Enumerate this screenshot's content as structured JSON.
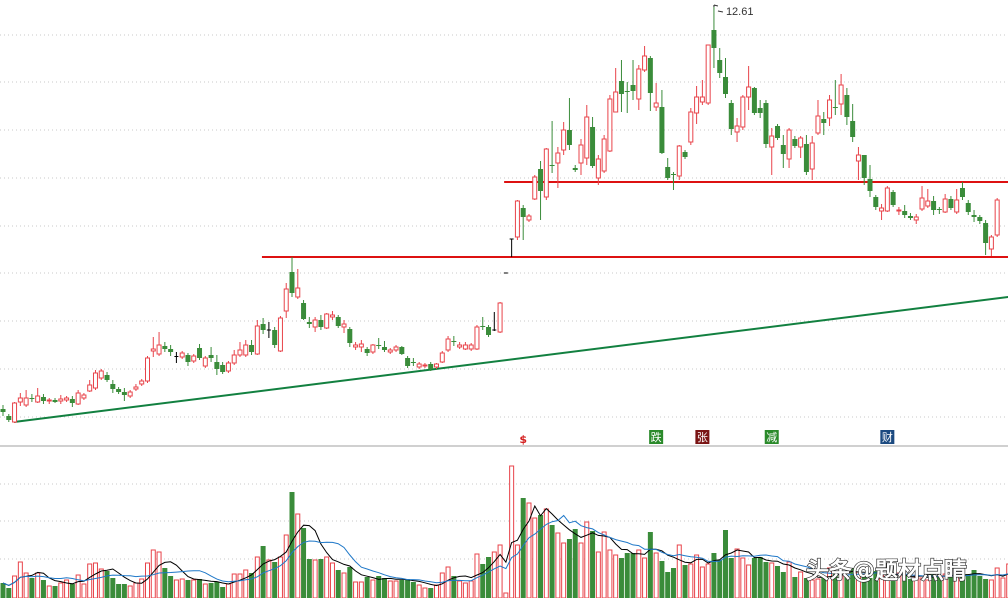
{
  "chart_data": {
    "type": "candlestick",
    "title": "",
    "high_label": "12.61",
    "colors": {
      "up": "#e8434a",
      "down": "#3a8c3a",
      "flat": "#000000",
      "resistance": "#dd1111",
      "trend": "#128040",
      "ma5": "#000000",
      "ma10": "#1f78c8"
    },
    "price_range": [
      3.75,
      12.71
    ],
    "volume_max": 152,
    "candles_ohlc": [
      [
        4.53,
        4.61,
        4.39,
        4.47
      ],
      [
        4.39,
        4.43,
        4.27,
        4.31
      ],
      [
        4.27,
        4.67,
        4.25,
        4.65
      ],
      [
        4.67,
        4.85,
        4.59,
        4.75
      ],
      [
        4.61,
        4.91,
        4.57,
        4.75
      ],
      [
        4.75,
        4.83,
        4.67,
        4.73
      ],
      [
        4.67,
        4.95,
        4.65,
        4.79
      ],
      [
        4.77,
        4.83,
        4.63,
        4.69
      ],
      [
        4.69,
        4.75,
        4.63,
        4.71
      ],
      [
        4.71,
        4.75,
        4.65,
        4.67
      ],
      [
        4.69,
        4.81,
        4.63,
        4.73
      ],
      [
        4.71,
        4.79,
        4.67,
        4.75
      ],
      [
        4.73,
        4.79,
        4.57,
        4.65
      ],
      [
        4.63,
        4.91,
        4.61,
        4.85
      ],
      [
        4.75,
        4.85,
        4.71,
        4.81
      ],
      [
        4.89,
        5.11,
        4.87,
        5.01
      ],
      [
        4.95,
        5.31,
        4.91,
        5.25
      ],
      [
        5.15,
        5.33,
        5.11,
        5.29
      ],
      [
        5.21,
        5.27,
        5.07,
        5.11
      ],
      [
        5.03,
        5.11,
        4.85,
        4.93
      ],
      [
        4.93,
        4.97,
        4.83,
        4.87
      ],
      [
        4.87,
        4.95,
        4.69,
        4.81
      ],
      [
        4.79,
        4.91,
        4.75,
        4.87
      ],
      [
        4.93,
        5.03,
        4.89,
        4.97
      ],
      [
        5.03,
        5.13,
        4.99,
        5.09
      ],
      [
        5.09,
        5.59,
        5.05,
        5.55
      ],
      [
        5.69,
        5.97,
        5.57,
        5.73
      ],
      [
        5.63,
        6.07,
        5.59,
        5.81
      ],
      [
        5.79,
        5.87,
        5.67,
        5.73
      ],
      [
        5.73,
        5.81,
        5.59,
        5.67
      ],
      [
        5.58,
        5.67,
        5.45,
        5.58
      ],
      [
        5.57,
        5.69,
        5.53,
        5.65
      ],
      [
        5.61,
        5.65,
        5.39,
        5.47
      ],
      [
        5.49,
        5.63,
        5.45,
        5.59
      ],
      [
        5.75,
        5.83,
        5.51,
        5.55
      ],
      [
        5.39,
        5.59,
        5.35,
        5.55
      ],
      [
        5.61,
        5.77,
        5.47,
        5.55
      ],
      [
        5.47,
        5.61,
        5.21,
        5.33
      ],
      [
        5.41,
        5.47,
        5.23,
        5.27
      ],
      [
        5.29,
        5.49,
        5.25,
        5.45
      ],
      [
        5.45,
        5.71,
        5.41,
        5.61
      ],
      [
        5.61,
        5.87,
        5.57,
        5.71
      ],
      [
        5.61,
        5.91,
        5.57,
        5.81
      ],
      [
        5.81,
        5.91,
        5.61,
        5.67
      ],
      [
        5.63,
        6.31,
        5.61,
        6.19
      ],
      [
        6.23,
        6.35,
        6.03,
        6.11
      ],
      [
        6.11,
        6.27,
        5.95,
        6.11
      ],
      [
        6.11,
        6.17,
        5.75,
        5.81
      ],
      [
        5.69,
        6.39,
        5.67,
        6.35
      ],
      [
        6.49,
        7.05,
        6.35,
        6.93
      ],
      [
        7.27,
        7.57,
        6.77,
        6.85
      ],
      [
        6.77,
        7.33,
        6.73,
        6.95
      ],
      [
        6.65,
        6.71,
        6.31,
        6.33
      ],
      [
        6.27,
        6.37,
        6.15,
        6.23
      ],
      [
        6.17,
        6.37,
        6.07,
        6.31
      ],
      [
        6.31,
        6.41,
        6.11,
        6.17
      ],
      [
        6.15,
        6.45,
        6.13,
        6.43
      ],
      [
        6.37,
        6.49,
        6.31,
        6.41
      ],
      [
        6.37,
        6.41,
        6.15,
        6.19
      ],
      [
        6.17,
        6.31,
        6.05,
        6.23
      ],
      [
        6.13,
        6.17,
        5.77,
        5.85
      ],
      [
        5.77,
        5.87,
        5.71,
        5.81
      ],
      [
        5.77,
        5.91,
        5.67,
        5.83
      ],
      [
        5.73,
        5.77,
        5.59,
        5.65
      ],
      [
        5.67,
        5.83,
        5.63,
        5.81
      ],
      [
        5.81,
        5.95,
        5.73,
        5.79
      ],
      [
        5.77,
        5.89,
        5.67,
        5.71
      ],
      [
        5.67,
        5.75,
        5.63,
        5.71
      ],
      [
        5.71,
        5.81,
        5.67,
        5.77
      ],
      [
        5.77,
        5.79,
        5.61,
        5.63
      ],
      [
        5.55,
        5.59,
        5.35,
        5.39
      ],
      [
        5.47,
        5.55,
        5.39,
        5.45
      ],
      [
        5.37,
        5.47,
        5.33,
        5.43
      ],
      [
        5.39,
        5.45,
        5.35,
        5.41
      ],
      [
        5.43,
        5.47,
        5.29,
        5.33
      ],
      [
        5.37,
        5.45,
        5.33,
        5.43
      ],
      [
        5.47,
        5.69,
        5.45,
        5.65
      ],
      [
        5.71,
        5.99,
        5.67,
        5.93
      ],
      [
        5.89,
        5.99,
        5.79,
        5.87
      ],
      [
        5.77,
        5.87,
        5.73,
        5.81
      ],
      [
        5.73,
        5.87,
        5.71,
        5.81
      ],
      [
        5.73,
        5.85,
        5.69,
        5.81
      ],
      [
        5.73,
        6.21,
        5.71,
        6.17
      ],
      [
        6.19,
        6.37,
        6.11,
        6.17
      ],
      [
        6.17,
        6.21,
        5.97,
        6.01
      ],
      [
        6.11,
        6.47,
        6.09,
        6.11
      ],
      [
        6.07,
        6.67,
        6.05,
        6.65
      ],
      [
        7.25,
        7.25,
        7.25,
        7.25
      ],
      [
        7.93,
        7.93,
        7.57,
        7.93
      ],
      [
        7.97,
        8.71,
        7.91,
        8.69
      ],
      [
        8.55,
        8.61,
        7.91,
        8.37
      ],
      [
        8.31,
        8.43,
        8.27,
        8.39
      ],
      [
        8.73,
        9.21,
        8.71,
        9.17
      ],
      [
        9.33,
        9.49,
        8.31,
        8.89
      ],
      [
        8.77,
        9.75,
        8.71,
        9.73
      ],
      [
        9.41,
        10.29,
        9.25,
        9.39
      ],
      [
        9.45,
        9.77,
        8.95,
        9.65
      ],
      [
        9.71,
        10.27,
        9.61,
        10.11
      ],
      [
        10.11,
        10.75,
        9.71,
        9.81
      ],
      [
        9.35,
        9.41,
        9.27,
        9.31
      ],
      [
        9.45,
        9.93,
        9.21,
        9.81
      ],
      [
        9.55,
        10.61,
        9.41,
        10.37
      ],
      [
        10.17,
        10.37,
        9.35,
        9.39
      ],
      [
        9.15,
        9.61,
        9.01,
        9.53
      ],
      [
        9.29,
        10.01,
        9.25,
        9.93
      ],
      [
        9.69,
        10.81,
        9.67,
        10.73
      ],
      [
        10.47,
        11.35,
        10.47,
        10.87
      ],
      [
        11.09,
        11.51,
        10.47,
        10.83
      ],
      [
        10.89,
        11.07,
        10.45,
        10.87
      ],
      [
        11.01,
        11.51,
        10.71,
        10.89
      ],
      [
        10.73,
        11.41,
        10.51,
        11.33
      ],
      [
        11.31,
        11.79,
        11.27,
        11.59
      ],
      [
        11.55,
        11.59,
        10.49,
        10.85
      ],
      [
        10.57,
        11.05,
        10.49,
        10.65
      ],
      [
        10.57,
        10.91,
        9.63,
        9.65
      ],
      [
        9.37,
        9.55,
        9.11,
        9.15
      ],
      [
        9.23,
        9.27,
        8.91,
        9.21
      ],
      [
        9.19,
        9.81,
        9.11,
        9.79
      ],
      [
        9.67,
        9.71,
        9.53,
        9.57
      ],
      [
        9.87,
        10.55,
        9.81,
        10.47
      ],
      [
        10.45,
        10.99,
        10.23,
        10.77
      ],
      [
        10.67,
        11.11,
        10.61,
        10.77
      ],
      [
        10.65,
        11.81,
        10.61,
        11.81
      ],
      [
        12.11,
        12.61,
        11.35,
        11.75
      ],
      [
        11.51,
        11.75,
        11.15,
        11.25
      ],
      [
        11.17,
        11.55,
        10.75,
        10.83
      ],
      [
        10.65,
        10.71,
        10.01,
        10.13
      ],
      [
        10.07,
        10.35,
        9.87,
        10.19
      ],
      [
        10.17,
        10.81,
        10.11,
        10.77
      ],
      [
        10.77,
        11.39,
        10.51,
        10.97
      ],
      [
        10.95,
        10.97,
        10.41,
        10.45
      ],
      [
        10.55,
        10.71,
        10.35,
        10.45
      ],
      [
        10.65,
        10.71,
        9.75,
        9.83
      ],
      [
        9.77,
        10.15,
        9.21,
        9.99
      ],
      [
        10.19,
        10.23,
        9.91,
        9.95
      ],
      [
        9.81,
        10.01,
        9.35,
        9.63
      ],
      [
        9.53,
        10.15,
        9.35,
        10.11
      ],
      [
        9.93,
        9.99,
        9.75,
        9.79
      ],
      [
        9.77,
        9.99,
        9.55,
        9.95
      ],
      [
        9.83,
        10.01,
        9.21,
        9.27
      ],
      [
        9.33,
        9.99,
        9.11,
        9.85
      ],
      [
        10.05,
        10.71,
        10.01,
        10.39
      ],
      [
        10.33,
        10.47,
        10.01,
        10.25
      ],
      [
        10.35,
        10.81,
        10.19,
        10.71
      ],
      [
        10.57,
        11.11,
        10.41,
        10.55
      ],
      [
        10.63,
        11.23,
        10.41,
        11.01
      ],
      [
        10.81,
        10.95,
        10.21,
        10.37
      ],
      [
        10.29,
        10.63,
        9.87,
        9.97
      ],
      [
        9.49,
        9.77,
        9.11,
        9.61
      ],
      [
        9.61,
        9.61,
        9.01,
        9.15
      ],
      [
        9.13,
        9.41,
        8.77,
        8.89
      ],
      [
        8.77,
        8.81,
        8.51,
        8.57
      ],
      [
        8.49,
        8.63,
        8.31,
        8.55
      ],
      [
        8.49,
        8.99,
        8.47,
        8.95
      ],
      [
        8.87,
        8.91,
        8.57,
        8.61
      ],
      [
        8.49,
        8.57,
        8.41,
        8.51
      ],
      [
        8.49,
        8.61,
        8.35,
        8.41
      ],
      [
        8.39,
        8.45,
        8.31,
        8.35
      ],
      [
        8.31,
        8.43,
        8.23,
        8.37
      ],
      [
        8.53,
        8.99,
        8.49,
        8.75
      ],
      [
        8.59,
        8.93,
        8.55,
        8.69
      ],
      [
        8.69,
        8.79,
        8.41,
        8.51
      ],
      [
        8.53,
        8.57,
        8.43,
        8.51
      ],
      [
        8.47,
        8.83,
        8.45,
        8.73
      ],
      [
        8.73,
        8.79,
        8.51,
        8.55
      ],
      [
        8.47,
        8.93,
        8.43,
        8.71
      ],
      [
        8.95,
        9.07,
        8.71,
        8.77
      ],
      [
        8.65,
        8.71,
        8.41,
        8.47
      ],
      [
        8.41,
        8.51,
        8.27,
        8.37
      ],
      [
        8.37,
        8.41,
        8.23,
        8.29
      ],
      [
        8.25,
        8.31,
        7.61,
        7.85
      ],
      [
        7.73,
        8.01,
        7.59,
        7.97
      ],
      [
        8.01,
        8.75,
        7.97,
        8.71
      ]
    ],
    "volume": [
      15,
      10,
      22,
      36,
      25,
      20,
      25,
      18,
      12,
      12,
      15,
      18,
      14,
      23,
      14,
      34,
      35,
      29,
      27,
      20,
      14,
      14,
      12,
      15,
      19,
      35,
      48,
      46,
      30,
      22,
      18,
      19,
      18,
      18,
      19,
      14,
      15,
      16,
      11,
      14,
      24,
      24,
      28,
      25,
      41,
      52,
      38,
      36,
      41,
      63,
      106,
      84,
      70,
      39,
      38,
      39,
      41,
      35,
      28,
      25,
      31,
      16,
      16,
      21,
      18,
      22,
      20,
      17,
      17,
      18,
      19,
      16,
      13,
      10,
      10,
      13,
      25,
      31,
      22,
      17,
      15,
      17,
      44,
      34,
      41,
      46,
      53,
      5,
      132,
      53,
      100,
      95,
      80,
      83,
      89,
      73,
      65,
      55,
      59,
      69,
      55,
      76,
      67,
      46,
      66,
      48,
      43,
      40,
      45,
      45,
      48,
      40,
      66,
      45,
      37,
      26,
      30,
      53,
      33,
      34,
      43,
      31,
      34,
      45,
      38,
      68,
      40,
      49,
      40,
      33,
      40,
      41,
      36,
      35,
      32,
      26,
      36,
      21,
      26,
      20,
      18,
      19,
      20,
      30,
      25,
      27,
      22,
      30,
      26,
      24,
      20,
      27,
      25,
      22,
      18,
      25,
      24,
      19,
      22,
      20,
      18,
      26,
      22,
      24,
      21,
      25,
      23,
      24,
      28,
      22,
      19,
      18,
      30,
      20,
      34
    ],
    "volume_ma_periods": [
      5,
      10
    ],
    "annotations": {
      "resistance_lines": [
        {
          "price": 9.07,
          "from_index": 86.7
        },
        {
          "price": 7.57,
          "from_index": 44.8
        }
      ],
      "trend_line": {
        "from_index": 1.9,
        "from_price": 4.27,
        "to_index": 173.9,
        "to_price": 6.77
      }
    },
    "event_markers": [
      {
        "index": 90,
        "label": "$",
        "color": "#d42020",
        "boxed": false
      },
      {
        "index": 113,
        "label": "跌",
        "color": "#2a8a2a",
        "boxed": true
      },
      {
        "index": 121,
        "label": "张",
        "color": "#7a1414",
        "boxed": true
      },
      {
        "index": 133,
        "label": "减",
        "color": "#2a8a2a",
        "boxed": true
      },
      {
        "index": 153,
        "label": "财",
        "color": "#1b4a80",
        "boxed": true
      }
    ]
  },
  "watermark": "头条@题材点睛"
}
